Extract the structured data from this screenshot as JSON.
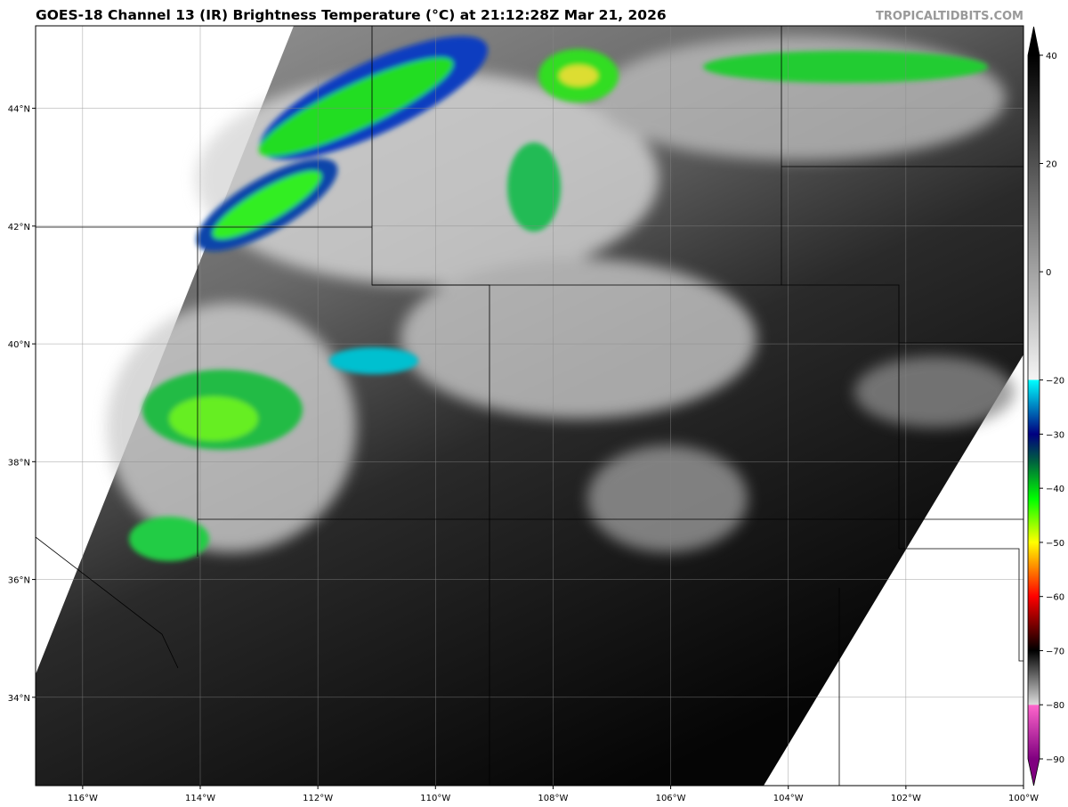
{
  "title": "GOES-18 Channel 13 (IR) Brightness Temperature (°C) at 21:12:28Z Mar 21, 2026",
  "credit": "TROPICALTIDBITS.COM",
  "map": {
    "lon_range": [
      -116.8,
      -100.0
    ],
    "lat_range": [
      32.5,
      45.4
    ],
    "lon_ticks": [
      {
        "v": -116,
        "label": "116°W"
      },
      {
        "v": -114,
        "label": "114°W"
      },
      {
        "v": -112,
        "label": "112°W"
      },
      {
        "v": -110,
        "label": "110°W"
      },
      {
        "v": -108,
        "label": "108°W"
      },
      {
        "v": -106,
        "label": "106°W"
      },
      {
        "v": -104,
        "label": "104°W"
      },
      {
        "v": -102,
        "label": "102°W"
      },
      {
        "v": -100,
        "label": "100°W"
      }
    ],
    "lat_ticks": [
      {
        "v": 44,
        "label": "44°N"
      },
      {
        "v": 42,
        "label": "42°N"
      },
      {
        "v": 40,
        "label": "40°N"
      },
      {
        "v": 38,
        "label": "38°N"
      },
      {
        "v": 36,
        "label": "36°N"
      },
      {
        "v": 34,
        "label": "34°N"
      }
    ],
    "grid": true
  },
  "colorbar": {
    "range": [
      -90,
      40
    ],
    "ticks": [
      40,
      20,
      0,
      -20,
      -30,
      -40,
      -50,
      -60,
      -70,
      -80,
      -90
    ],
    "stops": [
      {
        "v": 40,
        "c": "#000000"
      },
      {
        "v": -20,
        "c": "#f4f4f4"
      },
      {
        "v": -20.01,
        "c": "#00ffff"
      },
      {
        "v": -30,
        "c": "#000080"
      },
      {
        "v": -35,
        "c": "#006040"
      },
      {
        "v": -42,
        "c": "#00ff00"
      },
      {
        "v": -50,
        "c": "#ffff00"
      },
      {
        "v": -55,
        "c": "#ff8000"
      },
      {
        "v": -60,
        "c": "#ff0000"
      },
      {
        "v": -70,
        "c": "#000000"
      },
      {
        "v": -80,
        "c": "#dddddd"
      },
      {
        "v": -80.01,
        "c": "#ff66cc"
      },
      {
        "v": -90,
        "c": "#800080"
      }
    ]
  }
}
